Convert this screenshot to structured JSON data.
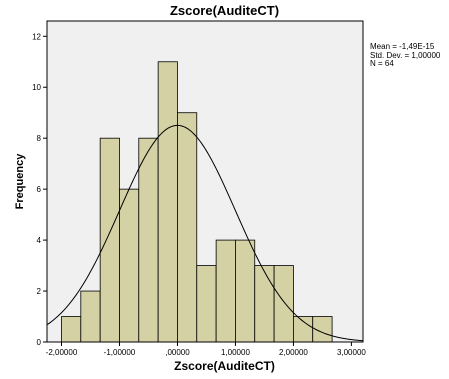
{
  "chart_data": {
    "type": "bar",
    "title": "Zscore(AuditeCT)",
    "xlabel": "Zscore(AuditeCT)",
    "ylabel": "Frequency",
    "xlim": [
      -2.25,
      3.2
    ],
    "ylim": [
      0,
      12.6
    ],
    "x_ticks": [
      -2,
      -1,
      0,
      1,
      2,
      3
    ],
    "x_tick_labels": [
      "-2,00000",
      "-1,00000",
      ",00000",
      "1,00000",
      "2,00000",
      "3,00000"
    ],
    "y_ticks": [
      0,
      2,
      4,
      6,
      8,
      10,
      12
    ],
    "y_tick_labels": [
      "0",
      "2",
      "4",
      "6",
      "8",
      "10",
      "12"
    ],
    "bin_edges": [
      -2.0,
      -1.667,
      -1.333,
      -1.0,
      -0.667,
      -0.333,
      0.0,
      0.333,
      0.667,
      1.0,
      1.333,
      1.667,
      2.0,
      2.333,
      2.667
    ],
    "bins": [
      {
        "start": -2.0,
        "end": -1.667,
        "count": 1
      },
      {
        "start": -1.667,
        "end": -1.333,
        "count": 2
      },
      {
        "start": -1.333,
        "end": -1.0,
        "count": 8
      },
      {
        "start": -1.0,
        "end": -0.667,
        "count": 6
      },
      {
        "start": -0.667,
        "end": -0.333,
        "count": 8
      },
      {
        "start": -0.333,
        "end": 0.0,
        "count": 11
      },
      {
        "start": 0.0,
        "end": 0.333,
        "count": 9
      },
      {
        "start": 0.333,
        "end": 0.667,
        "count": 3
      },
      {
        "start": 0.667,
        "end": 1.0,
        "count": 4
      },
      {
        "start": 1.0,
        "end": 1.333,
        "count": 4
      },
      {
        "start": 1.333,
        "end": 1.667,
        "count": 3
      },
      {
        "start": 1.667,
        "end": 2.0,
        "count": 3
      },
      {
        "start": 2.0,
        "end": 2.333,
        "count": 1
      },
      {
        "start": 2.333,
        "end": 2.667,
        "count": 1
      }
    ],
    "normal_curve": {
      "mean": -1.49e-15,
      "std": 1.0,
      "n": 64,
      "bin_width": 0.333
    },
    "stats": [
      "Mean = -1,49E-15",
      "Std. Dev. = 1,00000",
      "N = 64"
    ],
    "colors": {
      "bar_fill": "#d4d1a4",
      "bar_stroke": "#000000",
      "plot_bg": "#f0f0f0",
      "curve": "#000000"
    }
  }
}
